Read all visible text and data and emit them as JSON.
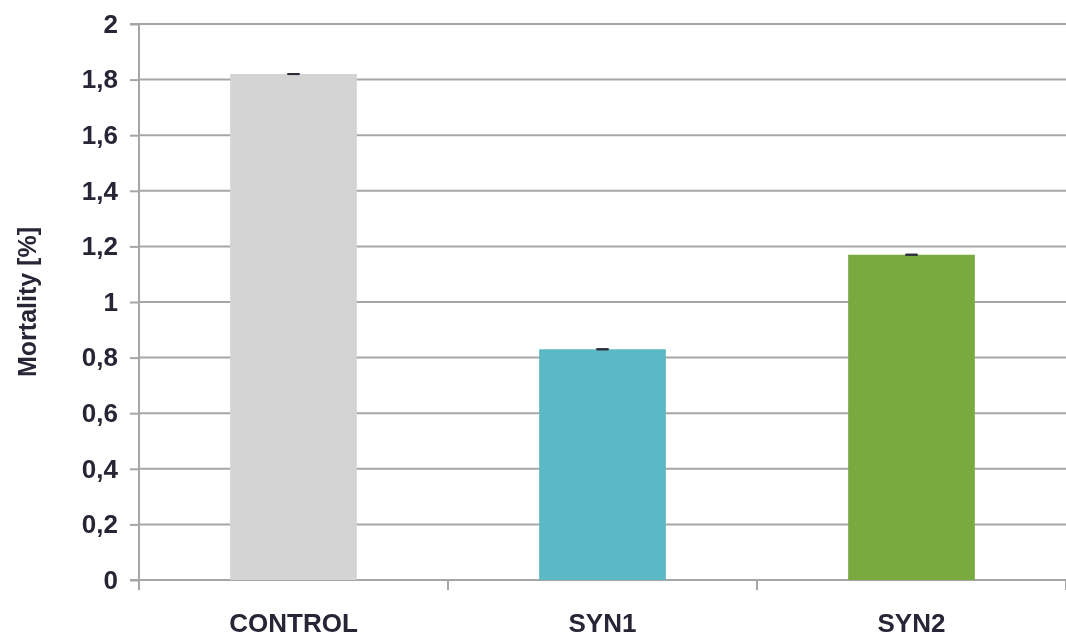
{
  "chart_data": {
    "type": "bar",
    "categories": [
      "CONTROL",
      "SYN1",
      "SYN2"
    ],
    "values": [
      1.82,
      0.83,
      1.17
    ],
    "colors": [
      "#d4d4d4",
      "#5bb8c5",
      "#78aa40"
    ],
    "errors": [
      0,
      0,
      0
    ],
    "ylabel": "Mortality [%]",
    "ylim": [
      0,
      2
    ],
    "yticks": [
      0,
      {
        "value": 0.2,
        "label": "0,2"
      },
      {
        "value": 0.4,
        "label": "0,4"
      },
      {
        "value": 0.6,
        "label": "0,6"
      },
      {
        "value": 0.8,
        "label": "0,8"
      },
      1,
      {
        "value": 1.2,
        "label": "1,2"
      },
      {
        "value": 1.4,
        "label": "1,4"
      },
      {
        "value": 1.6,
        "label": "1,6"
      },
      {
        "value": 1.8,
        "label": "1,8"
      },
      2
    ],
    "grid": "y"
  }
}
